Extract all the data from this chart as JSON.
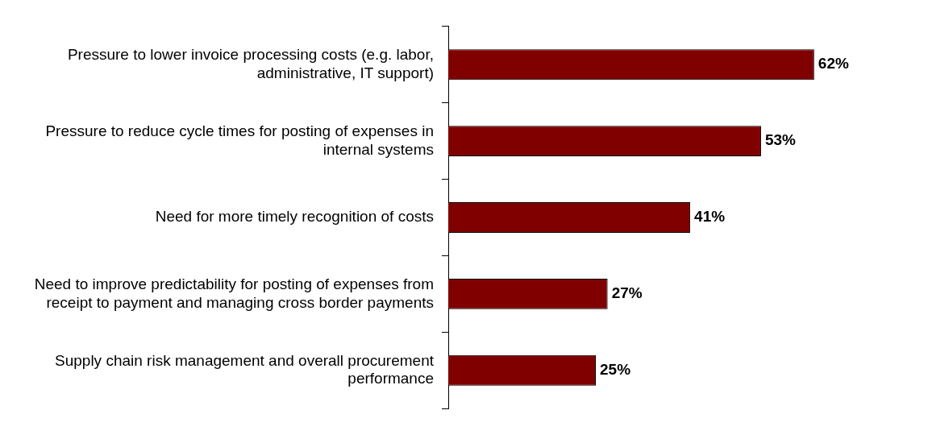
{
  "chart_data": {
    "type": "bar",
    "orientation": "horizontal",
    "categories": [
      "Pressure to lower invoice processing costs (e.g. labor, administrative, IT support)",
      "Pressure to reduce cycle times for posting of expenses in internal systems",
      "Need for more timely recognition of costs",
      "Need to improve predictability for posting of expenses from receipt to payment and managing cross border payments",
      "Supply chain risk management and overall procurement performance"
    ],
    "values": [
      62,
      53,
      41,
      27,
      25
    ],
    "color": "#800000",
    "data_labels": true,
    "value_labels": [
      "62%",
      "53%",
      "41%",
      "27%",
      "25%"
    ]
  }
}
